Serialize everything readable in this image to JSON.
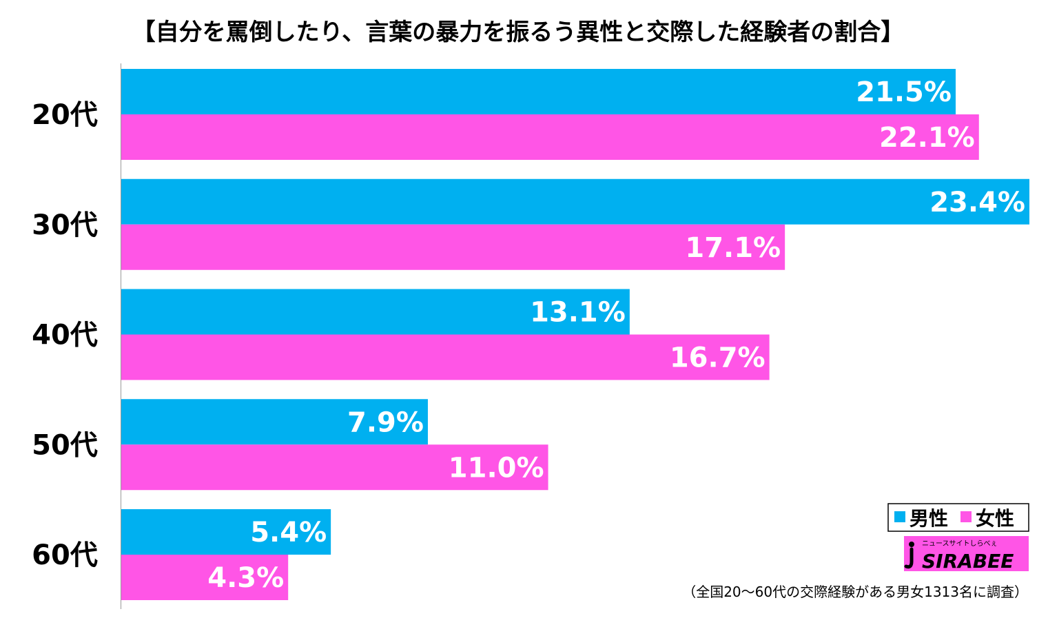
{
  "chart_data": {
    "type": "bar",
    "orientation": "horizontal",
    "title": "【自分を罵倒したり、言葉の暴力を振るう異性と交際した経験者の割合】",
    "categories": [
      "20代",
      "30代",
      "40代",
      "50代",
      "60代"
    ],
    "series": [
      {
        "name": "男性",
        "values": [
          21.5,
          23.4,
          13.1,
          7.9,
          5.4
        ],
        "labels": [
          "21.5%",
          "23.4%",
          "13.1%",
          "7.9%",
          "5.4%"
        ],
        "color": "#00B0F0"
      },
      {
        "name": "女性",
        "values": [
          22.1,
          17.1,
          16.7,
          11.0,
          4.3
        ],
        "labels": [
          "22.1%",
          "17.1%",
          "16.7%",
          "11.0%",
          "4.3%"
        ],
        "color": "#FF55E6"
      }
    ],
    "unit": "%",
    "xlim": [
      0,
      23.4
    ],
    "grid": false,
    "legend_position": "bottom-right",
    "note": "（全国20～60代の交際経験がある男女1313名に調査）"
  },
  "logo": {
    "tagline": "ニュースサイトしらべぇ",
    "name": "SIRABEE"
  }
}
